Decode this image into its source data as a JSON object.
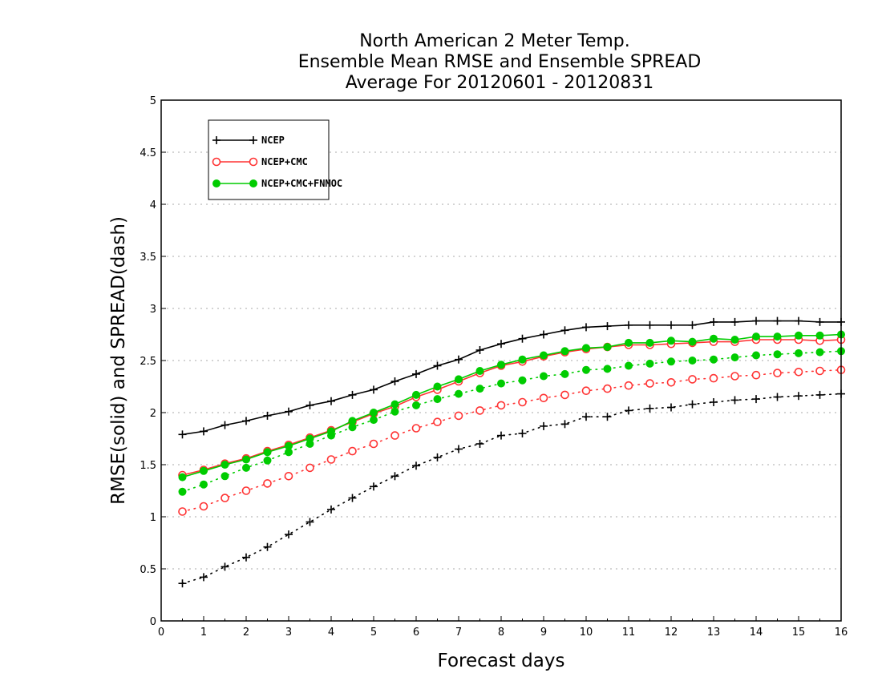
{
  "chart_data": {
    "type": "line",
    "title": [
      "North American 2 Meter Temp.",
      "Ensemble Mean RMSE and Ensemble SPREAD",
      "Average For 20120601 - 20120831"
    ],
    "xlabel": "Forecast days",
    "ylabel": "RMSE(solid) and SPREAD(dash)",
    "xlim": [
      0,
      16
    ],
    "ylim": [
      0,
      5
    ],
    "xticks": [
      0,
      1,
      2,
      3,
      4,
      5,
      6,
      7,
      8,
      9,
      10,
      11,
      12,
      13,
      14,
      15,
      16
    ],
    "yticks": [
      0,
      0.5,
      1,
      1.5,
      2,
      2.5,
      3,
      3.5,
      4,
      4.5,
      5
    ],
    "grid": "horizontal dotted",
    "legend_position": "top-left",
    "x": [
      0.5,
      1,
      1.5,
      2,
      2.5,
      3,
      3.5,
      4,
      4.5,
      5,
      5.5,
      6,
      6.5,
      7,
      7.5,
      8,
      8.5,
      9,
      9.5,
      10,
      10.5,
      11,
      11.5,
      12,
      12.5,
      13,
      13.5,
      14,
      14.5,
      15,
      15.5,
      16
    ],
    "series": [
      {
        "name": "NCEP",
        "color": "#000000",
        "marker": "plus",
        "rmse": [
          1.79,
          1.82,
          1.88,
          1.92,
          1.97,
          2.01,
          2.07,
          2.11,
          2.17,
          2.22,
          2.3,
          2.37,
          2.45,
          2.51,
          2.6,
          2.66,
          2.71,
          2.75,
          2.79,
          2.82,
          2.83,
          2.84,
          2.84,
          2.84,
          2.84,
          2.87,
          2.87,
          2.88,
          2.88,
          2.88,
          2.87,
          2.87
        ],
        "spread": [
          0.36,
          0.42,
          0.52,
          0.61,
          0.71,
          0.83,
          0.95,
          1.07,
          1.18,
          1.29,
          1.39,
          1.49,
          1.57,
          1.65,
          1.7,
          1.78,
          1.8,
          1.87,
          1.89,
          1.96,
          1.96,
          2.02,
          2.04,
          2.05,
          2.08,
          2.1,
          2.12,
          2.13,
          2.15,
          2.16,
          2.17,
          2.18
        ]
      },
      {
        "name": "NCEP+CMC",
        "color": "#ff3333",
        "marker": "open-circle",
        "rmse": [
          1.4,
          1.45,
          1.51,
          1.56,
          1.63,
          1.69,
          1.76,
          1.83,
          1.91,
          1.99,
          2.06,
          2.15,
          2.22,
          2.3,
          2.38,
          2.45,
          2.49,
          2.54,
          2.58,
          2.61,
          2.63,
          2.65,
          2.65,
          2.66,
          2.67,
          2.68,
          2.68,
          2.7,
          2.7,
          2.7,
          2.69,
          2.7
        ],
        "spread": [
          1.05,
          1.1,
          1.18,
          1.25,
          1.32,
          1.39,
          1.47,
          1.55,
          1.63,
          1.7,
          1.78,
          1.85,
          1.91,
          1.97,
          2.02,
          2.07,
          2.1,
          2.14,
          2.17,
          2.21,
          2.23,
          2.26,
          2.28,
          2.29,
          2.32,
          2.33,
          2.35,
          2.36,
          2.38,
          2.39,
          2.4,
          2.41
        ]
      },
      {
        "name": "NCEP+CMC+FNMOC",
        "color": "#00cc00",
        "marker": "filled-circle",
        "rmse": [
          1.38,
          1.44,
          1.5,
          1.55,
          1.62,
          1.68,
          1.75,
          1.82,
          1.92,
          2.0,
          2.08,
          2.17,
          2.25,
          2.32,
          2.4,
          2.46,
          2.51,
          2.55,
          2.59,
          2.62,
          2.63,
          2.67,
          2.67,
          2.69,
          2.68,
          2.71,
          2.7,
          2.73,
          2.73,
          2.74,
          2.74,
          2.75
        ],
        "spread": [
          1.24,
          1.31,
          1.39,
          1.47,
          1.54,
          1.62,
          1.7,
          1.78,
          1.86,
          1.93,
          2.01,
          2.07,
          2.13,
          2.18,
          2.23,
          2.28,
          2.31,
          2.35,
          2.37,
          2.41,
          2.42,
          2.45,
          2.47,
          2.49,
          2.5,
          2.51,
          2.53,
          2.55,
          2.56,
          2.57,
          2.58,
          2.59
        ]
      }
    ]
  }
}
